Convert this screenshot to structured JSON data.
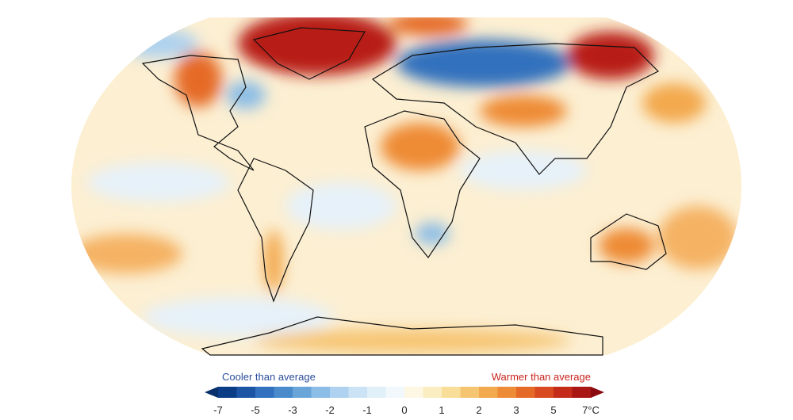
{
  "legend": {
    "left_label": "Cooler than average",
    "right_label": "Warmer than average",
    "left_color": "#2b4c9b",
    "right_color": "#c9241d",
    "ticks": [
      -7,
      -5,
      -3,
      -2,
      -1,
      0,
      1,
      2,
      3,
      5,
      {
        "value": 7,
        "label": "7°C"
      }
    ],
    "under_color": "#08306b",
    "over_color": "#8b0a10",
    "colors": [
      "#0b3d86",
      "#1d55a5",
      "#3271bd",
      "#4a8bcc",
      "#6aa5da",
      "#8cbde6",
      "#aed2ef",
      "#cbe3f5",
      "#e1eff9",
      "#f2f8fc",
      "#fdf7e4",
      "#fbedc2",
      "#f9de9a",
      "#f6c572",
      "#f3a94e",
      "#ee8b36",
      "#e56a28",
      "#d84a1f",
      "#c42c19",
      "#a81714"
    ]
  }
}
